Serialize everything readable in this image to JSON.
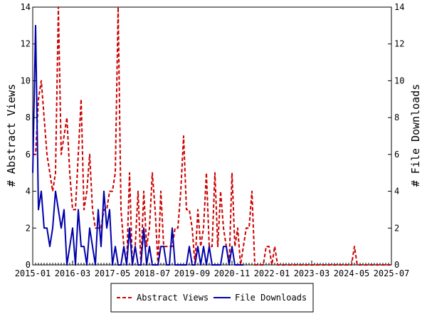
{
  "chart_data": {
    "type": "line",
    "ylabel_left": "# Abstract Views",
    "ylabel_right": "# File Downloads",
    "ylim": [
      0,
      14
    ],
    "y_ticks": [
      0,
      2,
      4,
      6,
      8,
      10,
      12,
      14
    ],
    "x_range": [
      "2015-01",
      "2025-07"
    ],
    "x_tick_labels": [
      "2015-01",
      "2016-03",
      "2017-05",
      "2018-07",
      "2019-09",
      "2020-11",
      "2022-01",
      "2023-03",
      "2024-05",
      "2025-07"
    ],
    "grid": false,
    "legend_position": "bottom-center",
    "series": [
      {
        "name": "Abstract Views",
        "color": "#cc0000",
        "line_style": "dashed",
        "axis": "left",
        "x": [
          "2015-01",
          "2015-02",
          "2015-03",
          "2015-04",
          "2015-05",
          "2015-06",
          "2015-07",
          "2015-08",
          "2015-09",
          "2015-10",
          "2015-11",
          "2015-12",
          "2016-01",
          "2016-02",
          "2016-03",
          "2016-04",
          "2016-05",
          "2016-06",
          "2016-07",
          "2016-08",
          "2016-09",
          "2016-10",
          "2016-11",
          "2016-12",
          "2017-01",
          "2017-02",
          "2017-03",
          "2017-04",
          "2017-05",
          "2017-06",
          "2017-07",
          "2017-08",
          "2017-09",
          "2017-10",
          "2017-11",
          "2017-12",
          "2018-01",
          "2018-02",
          "2018-03",
          "2018-04",
          "2018-05",
          "2018-06",
          "2018-07",
          "2018-08",
          "2018-09",
          "2018-10",
          "2018-11",
          "2018-12",
          "2019-01",
          "2019-02",
          "2019-03",
          "2019-04",
          "2019-05",
          "2019-06",
          "2019-07",
          "2019-08",
          "2019-09",
          "2019-10",
          "2019-11",
          "2019-12",
          "2020-01",
          "2020-02",
          "2020-03",
          "2020-04",
          "2020-05",
          "2020-06",
          "2020-07",
          "2020-08",
          "2020-09",
          "2020-10",
          "2020-11",
          "2020-12",
          "2021-01",
          "2021-02",
          "2021-03",
          "2021-04",
          "2021-05",
          "2021-06",
          "2021-07",
          "2021-08",
          "2021-09",
          "2021-10",
          "2021-11",
          "2021-12",
          "2022-01",
          "2022-02",
          "2022-03",
          "2022-04",
          "2022-05",
          "2022-06",
          "2022-07",
          "2022-08",
          "2022-09",
          "2022-10",
          "2022-11",
          "2022-12",
          "2023-01",
          "2023-02",
          "2023-03",
          "2023-04",
          "2023-05",
          "2023-06",
          "2023-07",
          "2023-08",
          "2023-09",
          "2023-10",
          "2023-11",
          "2023-12",
          "2024-01",
          "2024-02",
          "2024-03",
          "2024-04",
          "2024-05",
          "2024-06",
          "2024-07",
          "2024-08",
          "2024-09",
          "2024-10",
          "2024-11",
          "2024-12",
          "2025-01",
          "2025-02",
          "2025-03",
          "2025-04",
          "2025-05",
          "2025-06",
          "2025-07"
        ],
        "values": [
          6,
          6,
          9,
          10,
          8,
          6,
          5,
          4,
          5,
          14,
          6,
          7,
          8,
          5,
          3,
          3,
          6,
          9,
          3,
          4,
          6,
          3,
          2,
          2,
          2,
          3,
          3,
          4,
          4,
          5,
          14,
          3,
          1,
          0,
          5,
          0,
          1,
          4,
          0,
          4,
          1,
          2,
          5,
          3,
          0,
          4,
          1,
          1,
          1,
          1,
          2,
          2,
          4,
          7,
          3,
          3,
          2,
          0,
          3,
          1,
          2,
          5,
          1,
          1,
          5,
          1,
          4,
          2,
          1,
          0,
          5,
          1,
          2,
          0,
          1,
          2,
          2,
          4,
          0,
          0,
          0,
          0,
          1,
          1,
          0,
          1,
          0,
          0,
          0,
          0,
          0,
          0,
          0,
          0,
          0,
          0,
          0,
          0,
          0,
          0,
          0,
          0,
          0,
          0,
          0,
          0,
          0,
          0,
          0,
          0,
          0,
          0,
          0,
          1,
          0,
          0,
          0,
          0,
          0,
          0,
          0,
          0,
          0,
          0,
          0,
          0,
          0
        ]
      },
      {
        "name": "File Downloads",
        "color": "#0000aa",
        "line_style": "solid",
        "axis": "right",
        "x": [
          "2015-01",
          "2015-02",
          "2015-03",
          "2015-04",
          "2015-05",
          "2015-06",
          "2015-07",
          "2015-08",
          "2015-09",
          "2015-10",
          "2015-11",
          "2015-12",
          "2016-01",
          "2016-02",
          "2016-03",
          "2016-04",
          "2016-05",
          "2016-06",
          "2016-07",
          "2016-08",
          "2016-09",
          "2016-10",
          "2016-11",
          "2016-12",
          "2017-01",
          "2017-02",
          "2017-03",
          "2017-04",
          "2017-05",
          "2017-06",
          "2017-07",
          "2017-08",
          "2017-09",
          "2017-10",
          "2017-11",
          "2017-12",
          "2018-01",
          "2018-02",
          "2018-03",
          "2018-04",
          "2018-05",
          "2018-06",
          "2018-07",
          "2018-08",
          "2018-09",
          "2018-10",
          "2018-11",
          "2018-12",
          "2019-01",
          "2019-02",
          "2019-03",
          "2019-04",
          "2019-05",
          "2019-06",
          "2019-07",
          "2019-08",
          "2019-09",
          "2019-10",
          "2019-11",
          "2019-12",
          "2020-01",
          "2020-02",
          "2020-03",
          "2020-04",
          "2020-05",
          "2020-06",
          "2020-07",
          "2020-08",
          "2020-09",
          "2020-10",
          "2020-11",
          "2020-12",
          "2021-01",
          "2021-02",
          "2021-03"
        ],
        "values": [
          5,
          13,
          3,
          4,
          2,
          2,
          1,
          2,
          4,
          3,
          2,
          3,
          0,
          1,
          2,
          0,
          3,
          1,
          1,
          0,
          2,
          1,
          0,
          3,
          1,
          4,
          2,
          3,
          0,
          1,
          0,
          0,
          1,
          0,
          2,
          0,
          1,
          0,
          0,
          2,
          0,
          1,
          0,
          0,
          0,
          1,
          1,
          0,
          0,
          2,
          0,
          0,
          0,
          0,
          0,
          1,
          0,
          0,
          1,
          0,
          1,
          0,
          1,
          0,
          0,
          0,
          0,
          1,
          1,
          0,
          1,
          0,
          0,
          0,
          0
        ]
      }
    ]
  }
}
